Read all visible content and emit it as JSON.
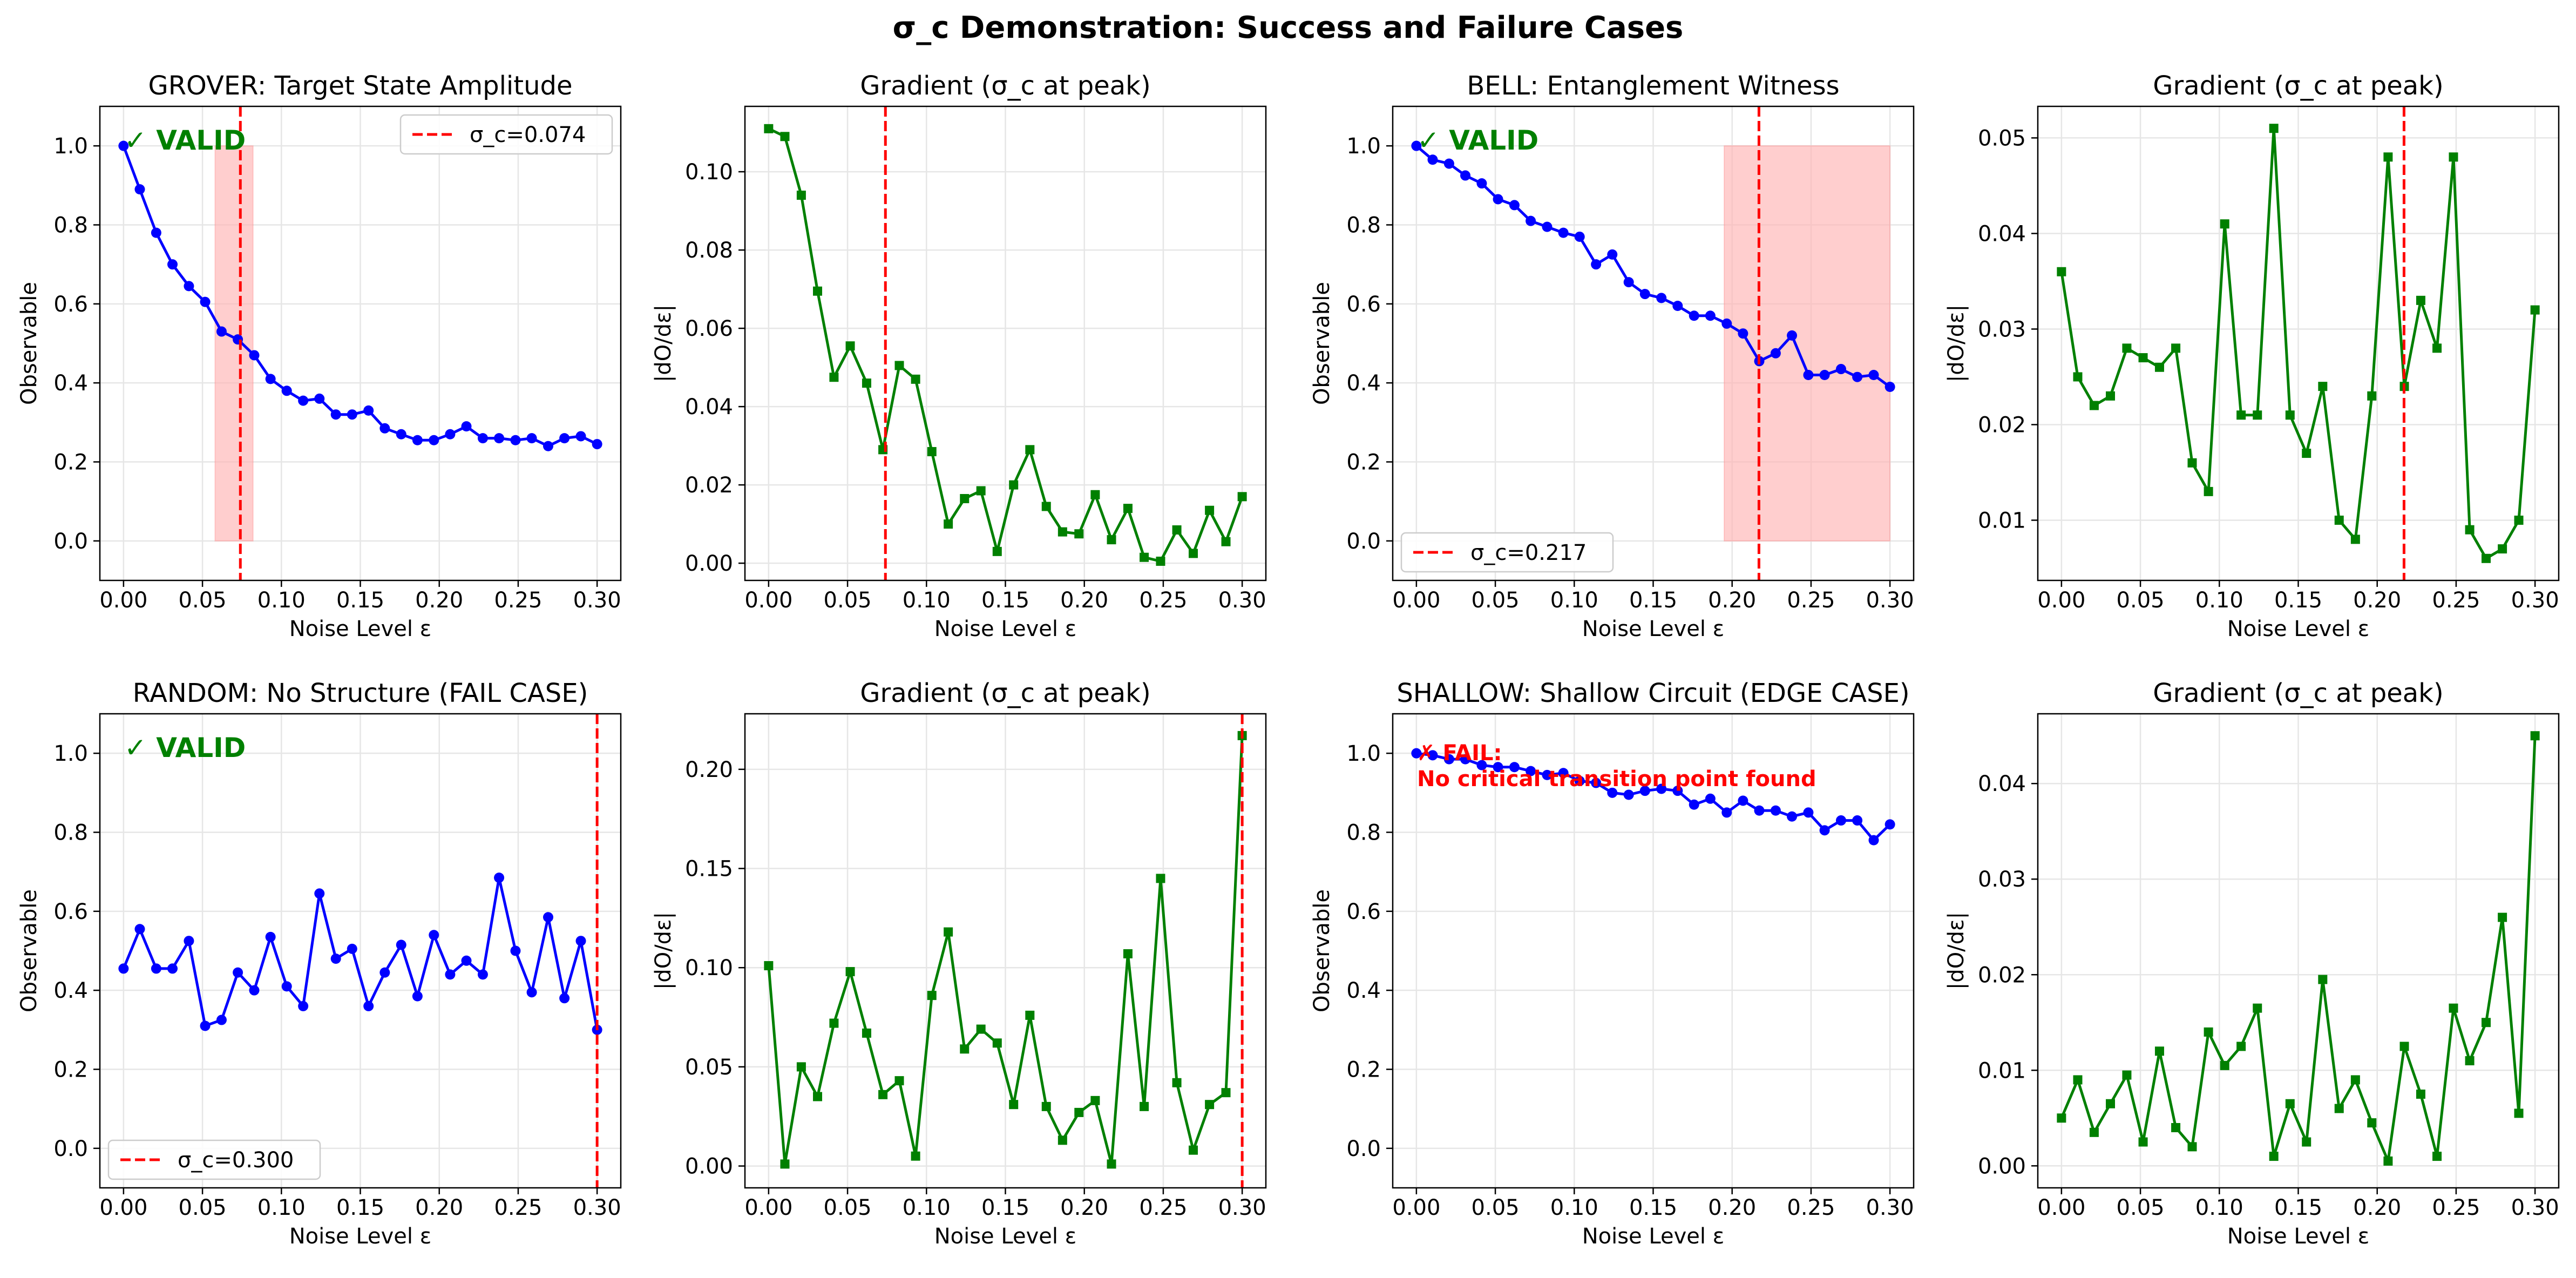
{
  "figure": {
    "suptitle": "σ_c Demonstration: Success and Failure Cases"
  },
  "colors": {
    "observable_line": "#0000ff",
    "gradient_line": "#008000",
    "sigma_line": "#ff0000",
    "shade": "#ffb3b3",
    "valid_text": "#008000",
    "fail_text": "#ff0000",
    "grid": "#e6e6e6"
  },
  "chart_data": [
    {
      "id": "grover-observable",
      "type": "line",
      "title": "GROVER: Target State Amplitude",
      "xlabel": "Noise Level ε",
      "ylabel": "Observable",
      "xlim": [
        -0.015,
        0.315
      ],
      "ylim": [
        -0.1,
        1.1
      ],
      "xticks": [
        0.0,
        0.05,
        0.1,
        0.15,
        0.2,
        0.25,
        0.3
      ],
      "xtick_labels": [
        "0.00",
        "0.05",
        "0.10",
        "0.15",
        "0.20",
        "0.25",
        "0.30"
      ],
      "yticks": [
        0.0,
        0.2,
        0.4,
        0.6,
        0.8,
        1.0
      ],
      "ytick_labels": [
        "0.0",
        "0.2",
        "0.4",
        "0.6",
        "0.8",
        "1.0"
      ],
      "grid": true,
      "marker": "circle",
      "series": [
        {
          "x": [
            0.0,
            0.0103,
            0.0207,
            0.031,
            0.0414,
            0.0517,
            0.0621,
            0.0724,
            0.0828,
            0.0931,
            0.1034,
            0.1138,
            0.1241,
            0.1345,
            0.1448,
            0.1552,
            0.1655,
            0.1759,
            0.1862,
            0.1966,
            0.2069,
            0.2172,
            0.2276,
            0.2379,
            0.2483,
            0.2586,
            0.269,
            0.2793,
            0.2897,
            0.3
          ],
          "values": [
            1.0,
            0.89,
            0.78,
            0.7,
            0.645,
            0.605,
            0.53,
            0.51,
            0.47,
            0.41,
            0.38,
            0.355,
            0.36,
            0.32,
            0.32,
            0.33,
            0.285,
            0.27,
            0.255,
            0.255,
            0.27,
            0.29,
            0.26,
            0.26,
            0.255,
            0.26,
            0.24,
            0.26,
            0.265,
            0.245
          ]
        }
      ],
      "sigma_c": 0.074,
      "shade": {
        "x": [
          0.058,
          0.082
        ],
        "y": [
          0.0,
          1.0
        ]
      },
      "legend": {
        "label": "σ_c=0.074",
        "position": "top-right"
      },
      "status": {
        "text": "✓ VALID",
        "kind": "valid"
      }
    },
    {
      "id": "grover-gradient",
      "type": "line",
      "title": "Gradient (σ_c at peak)",
      "xlabel": "Noise Level ε",
      "ylabel": "|dO/dε|",
      "xlim": [
        -0.015,
        0.315
      ],
      "ylim": [
        -0.0044,
        0.1167
      ],
      "xticks": [
        0.0,
        0.05,
        0.1,
        0.15,
        0.2,
        0.25,
        0.3
      ],
      "xtick_labels": [
        "0.00",
        "0.05",
        "0.10",
        "0.15",
        "0.20",
        "0.25",
        "0.30"
      ],
      "yticks": [
        0.0,
        0.02,
        0.04,
        0.06,
        0.08,
        0.1
      ],
      "ytick_labels": [
        "0.00",
        "0.02",
        "0.04",
        "0.06",
        "0.08",
        "0.10"
      ],
      "grid": true,
      "marker": "square",
      "series": [
        {
          "x": [
            0.0,
            0.0103,
            0.0207,
            0.031,
            0.0414,
            0.0517,
            0.0621,
            0.0724,
            0.0828,
            0.0931,
            0.1034,
            0.1138,
            0.1241,
            0.1345,
            0.1448,
            0.1552,
            0.1655,
            0.1759,
            0.1862,
            0.1966,
            0.2069,
            0.2172,
            0.2276,
            0.2379,
            0.2483,
            0.2586,
            0.269,
            0.2793,
            0.2897,
            0.3
          ],
          "values": [
            0.111,
            0.109,
            0.094,
            0.0695,
            0.0475,
            0.0555,
            0.046,
            0.029,
            0.0505,
            0.047,
            0.0285,
            0.01,
            0.0165,
            0.0185,
            0.003,
            0.02,
            0.029,
            0.0145,
            0.008,
            0.0075,
            0.0175,
            0.006,
            0.014,
            0.0015,
            0.0005,
            0.0085,
            0.0025,
            0.0135,
            0.0055,
            0.017
          ]
        }
      ],
      "sigma_c": 0.074
    },
    {
      "id": "bell-observable",
      "type": "line",
      "title": "BELL: Entanglement Witness",
      "xlabel": "Noise Level ε",
      "ylabel": "Observable",
      "xlim": [
        -0.015,
        0.315
      ],
      "ylim": [
        -0.1,
        1.1
      ],
      "xticks": [
        0.0,
        0.05,
        0.1,
        0.15,
        0.2,
        0.25,
        0.3
      ],
      "xtick_labels": [
        "0.00",
        "0.05",
        "0.10",
        "0.15",
        "0.20",
        "0.25",
        "0.30"
      ],
      "yticks": [
        0.0,
        0.2,
        0.4,
        0.6,
        0.8,
        1.0
      ],
      "ytick_labels": [
        "0.0",
        "0.2",
        "0.4",
        "0.6",
        "0.8",
        "1.0"
      ],
      "grid": true,
      "marker": "circle",
      "series": [
        {
          "x": [
            0.0,
            0.0103,
            0.0207,
            0.031,
            0.0414,
            0.0517,
            0.0621,
            0.0724,
            0.0828,
            0.0931,
            0.1034,
            0.1138,
            0.1241,
            0.1345,
            0.1448,
            0.1552,
            0.1655,
            0.1759,
            0.1862,
            0.1966,
            0.2069,
            0.2172,
            0.2276,
            0.2379,
            0.2483,
            0.2586,
            0.269,
            0.2793,
            0.2897,
            0.3
          ],
          "values": [
            1.0,
            0.965,
            0.955,
            0.925,
            0.905,
            0.865,
            0.85,
            0.81,
            0.795,
            0.78,
            0.77,
            0.7,
            0.725,
            0.655,
            0.625,
            0.615,
            0.595,
            0.57,
            0.57,
            0.55,
            0.525,
            0.455,
            0.475,
            0.52,
            0.42,
            0.42,
            0.435,
            0.415,
            0.42,
            0.39
          ]
        }
      ],
      "sigma_c": 0.217,
      "shade": {
        "x": [
          0.195,
          0.3
        ],
        "y": [
          0.0,
          1.0
        ]
      },
      "legend": {
        "label": "σ_c=0.217",
        "position": "lower-left"
      },
      "status": {
        "text": "✓ VALID",
        "kind": "valid"
      }
    },
    {
      "id": "bell-gradient",
      "type": "line",
      "title": "Gradient (σ_c at peak)",
      "xlabel": "Noise Level ε",
      "ylabel": "|dO/dε|",
      "xlim": [
        -0.015,
        0.315
      ],
      "ylim": [
        0.0037,
        0.0533
      ],
      "xticks": [
        0.0,
        0.05,
        0.1,
        0.15,
        0.2,
        0.25,
        0.3
      ],
      "xtick_labels": [
        "0.00",
        "0.05",
        "0.10",
        "0.15",
        "0.20",
        "0.25",
        "0.30"
      ],
      "yticks": [
        0.01,
        0.02,
        0.03,
        0.04,
        0.05
      ],
      "ytick_labels": [
        "0.01",
        "0.02",
        "0.03",
        "0.04",
        "0.05"
      ],
      "grid": true,
      "marker": "square",
      "series": [
        {
          "x": [
            0.0,
            0.0103,
            0.0207,
            0.031,
            0.0414,
            0.0517,
            0.0621,
            0.0724,
            0.0828,
            0.0931,
            0.1034,
            0.1138,
            0.1241,
            0.1345,
            0.1448,
            0.1552,
            0.1655,
            0.1759,
            0.1862,
            0.1966,
            0.2069,
            0.2172,
            0.2276,
            0.2379,
            0.2483,
            0.2586,
            0.269,
            0.2793,
            0.2897,
            0.3
          ],
          "values": [
            0.036,
            0.025,
            0.022,
            0.023,
            0.028,
            0.027,
            0.026,
            0.028,
            0.016,
            0.013,
            0.041,
            0.021,
            0.021,
            0.051,
            0.021,
            0.017,
            0.024,
            0.01,
            0.008,
            0.023,
            0.048,
            0.024,
            0.033,
            0.028,
            0.048,
            0.009,
            0.006,
            0.007,
            0.01,
            0.032
          ]
        }
      ],
      "sigma_c": 0.217
    },
    {
      "id": "random-observable",
      "type": "line",
      "title": "RANDOM: No Structure (FAIL CASE)",
      "xlabel": "Noise Level ε",
      "ylabel": "Observable",
      "xlim": [
        -0.015,
        0.315
      ],
      "ylim": [
        -0.1,
        1.1
      ],
      "xticks": [
        0.0,
        0.05,
        0.1,
        0.15,
        0.2,
        0.25,
        0.3
      ],
      "xtick_labels": [
        "0.00",
        "0.05",
        "0.10",
        "0.15",
        "0.20",
        "0.25",
        "0.30"
      ],
      "yticks": [
        0.0,
        0.2,
        0.4,
        0.6,
        0.8,
        1.0
      ],
      "ytick_labels": [
        "0.0",
        "0.2",
        "0.4",
        "0.6",
        "0.8",
        "1.0"
      ],
      "grid": true,
      "marker": "circle",
      "series": [
        {
          "x": [
            0.0,
            0.0103,
            0.0207,
            0.031,
            0.0414,
            0.0517,
            0.0621,
            0.0724,
            0.0828,
            0.0931,
            0.1034,
            0.1138,
            0.1241,
            0.1345,
            0.1448,
            0.1552,
            0.1655,
            0.1759,
            0.1862,
            0.1966,
            0.2069,
            0.2172,
            0.2276,
            0.2379,
            0.2483,
            0.2586,
            0.269,
            0.2793,
            0.2897,
            0.3
          ],
          "values": [
            0.455,
            0.555,
            0.455,
            0.455,
            0.525,
            0.31,
            0.325,
            0.445,
            0.4,
            0.535,
            0.41,
            0.36,
            0.645,
            0.48,
            0.505,
            0.36,
            0.445,
            0.515,
            0.385,
            0.54,
            0.44,
            0.475,
            0.44,
            0.685,
            0.5,
            0.395,
            0.585,
            0.38,
            0.525,
            0.3
          ]
        }
      ],
      "sigma_c": 0.3,
      "legend": {
        "label": "σ_c=0.300",
        "position": "lower-left"
      },
      "status": {
        "text": "✓ VALID",
        "kind": "valid"
      }
    },
    {
      "id": "random-gradient",
      "type": "line",
      "title": "Gradient (σ_c at peak)",
      "xlabel": "Noise Level ε",
      "ylabel": "|dO/dε|",
      "xlim": [
        -0.015,
        0.315
      ],
      "ylim": [
        -0.011,
        0.228
      ],
      "xticks": [
        0.0,
        0.05,
        0.1,
        0.15,
        0.2,
        0.25,
        0.3
      ],
      "xtick_labels": [
        "0.00",
        "0.05",
        "0.10",
        "0.15",
        "0.20",
        "0.25",
        "0.30"
      ],
      "yticks": [
        0.0,
        0.05,
        0.1,
        0.15,
        0.2
      ],
      "ytick_labels": [
        "0.00",
        "0.05",
        "0.10",
        "0.15",
        "0.20"
      ],
      "grid": true,
      "marker": "square",
      "series": [
        {
          "x": [
            0.0,
            0.0103,
            0.0207,
            0.031,
            0.0414,
            0.0517,
            0.0621,
            0.0724,
            0.0828,
            0.0931,
            0.1034,
            0.1138,
            0.1241,
            0.1345,
            0.1448,
            0.1552,
            0.1655,
            0.1759,
            0.1862,
            0.1966,
            0.2069,
            0.2172,
            0.2276,
            0.2379,
            0.2483,
            0.2586,
            0.269,
            0.2793,
            0.2897,
            0.3
          ],
          "values": [
            0.101,
            0.001,
            0.05,
            0.035,
            0.072,
            0.098,
            0.067,
            0.036,
            0.043,
            0.005,
            0.086,
            0.118,
            0.059,
            0.069,
            0.062,
            0.031,
            0.076,
            0.03,
            0.013,
            0.027,
            0.033,
            0.001,
            0.107,
            0.03,
            0.145,
            0.042,
            0.008,
            0.031,
            0.037,
            0.217
          ]
        }
      ],
      "sigma_c": 0.3
    },
    {
      "id": "shallow-observable",
      "type": "line",
      "title": "SHALLOW: Shallow Circuit (EDGE CASE)",
      "xlabel": "Noise Level ε",
      "ylabel": "Observable",
      "xlim": [
        -0.015,
        0.315
      ],
      "ylim": [
        -0.1,
        1.1
      ],
      "xticks": [
        0.0,
        0.05,
        0.1,
        0.15,
        0.2,
        0.25,
        0.3
      ],
      "xtick_labels": [
        "0.00",
        "0.05",
        "0.10",
        "0.15",
        "0.20",
        "0.25",
        "0.30"
      ],
      "yticks": [
        0.0,
        0.2,
        0.4,
        0.6,
        0.8,
        1.0
      ],
      "ytick_labels": [
        "0.0",
        "0.2",
        "0.4",
        "0.6",
        "0.8",
        "1.0"
      ],
      "grid": true,
      "marker": "circle",
      "series": [
        {
          "x": [
            0.0,
            0.0103,
            0.0207,
            0.031,
            0.0414,
            0.0517,
            0.0621,
            0.0724,
            0.0828,
            0.0931,
            0.1034,
            0.1138,
            0.1241,
            0.1345,
            0.1448,
            0.1552,
            0.1655,
            0.1759,
            0.1862,
            0.1966,
            0.2069,
            0.2172,
            0.2276,
            0.2379,
            0.2483,
            0.2586,
            0.269,
            0.2793,
            0.2897,
            0.3
          ],
          "values": [
            1.0,
            0.995,
            0.985,
            0.985,
            0.97,
            0.965,
            0.965,
            0.955,
            0.945,
            0.95,
            0.93,
            0.925,
            0.9,
            0.895,
            0.905,
            0.91,
            0.905,
            0.87,
            0.885,
            0.85,
            0.88,
            0.855,
            0.855,
            0.84,
            0.85,
            0.805,
            0.83,
            0.83,
            0.78,
            0.82
          ]
        }
      ],
      "status": {
        "text": "✗ FAIL:",
        "detail": "No critical transition point found",
        "kind": "fail"
      }
    },
    {
      "id": "shallow-gradient",
      "type": "line",
      "title": "Gradient (σ_c at peak)",
      "xlabel": "Noise Level ε",
      "ylabel": "|dO/dε|",
      "xlim": [
        -0.015,
        0.315
      ],
      "ylim": [
        -0.0023,
        0.0473
      ],
      "xticks": [
        0.0,
        0.05,
        0.1,
        0.15,
        0.2,
        0.25,
        0.3
      ],
      "xtick_labels": [
        "0.00",
        "0.05",
        "0.10",
        "0.15",
        "0.20",
        "0.25",
        "0.30"
      ],
      "yticks": [
        0.0,
        0.01,
        0.02,
        0.03,
        0.04
      ],
      "ytick_labels": [
        "0.00",
        "0.01",
        "0.02",
        "0.03",
        "0.04"
      ],
      "grid": true,
      "marker": "square",
      "series": [
        {
          "x": [
            0.0,
            0.0103,
            0.0207,
            0.031,
            0.0414,
            0.0517,
            0.0621,
            0.0724,
            0.0828,
            0.0931,
            0.1034,
            0.1138,
            0.1241,
            0.1345,
            0.1448,
            0.1552,
            0.1655,
            0.1759,
            0.1862,
            0.1966,
            0.2069,
            0.2172,
            0.2276,
            0.2379,
            0.2483,
            0.2586,
            0.269,
            0.2793,
            0.2897,
            0.3
          ],
          "values": [
            0.005,
            0.009,
            0.0035,
            0.0065,
            0.0095,
            0.0025,
            0.012,
            0.004,
            0.002,
            0.014,
            0.0105,
            0.0125,
            0.0165,
            0.001,
            0.0065,
            0.0025,
            0.0195,
            0.006,
            0.009,
            0.0045,
            0.0005,
            0.0125,
            0.0075,
            0.001,
            0.0165,
            0.011,
            0.015,
            0.026,
            0.0055,
            0.045
          ]
        }
      ]
    }
  ]
}
